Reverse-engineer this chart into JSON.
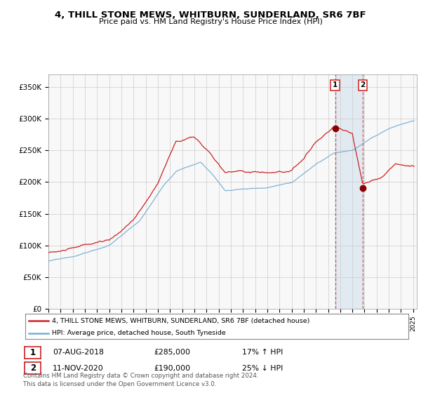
{
  "title1": "4, THILL STONE MEWS, WHITBURN, SUNDERLAND, SR6 7BF",
  "title2": "Price paid vs. HM Land Registry's House Price Index (HPI)",
  "ylabel_ticks": [
    "£0",
    "£50K",
    "£100K",
    "£150K",
    "£200K",
    "£250K",
    "£300K",
    "£350K"
  ],
  "ytick_vals": [
    0,
    50000,
    100000,
    150000,
    200000,
    250000,
    300000,
    350000
  ],
  "ylim": [
    0,
    370000
  ],
  "year_start": 1995,
  "year_end": 2025,
  "sale1_year": 2018.58,
  "sale1_price": 285000,
  "sale1_label": "07-AUG-2018",
  "sale1_hpi": "17% ↑ HPI",
  "sale2_year": 2020.86,
  "sale2_price": 190000,
  "sale2_label": "11-NOV-2020",
  "sale2_hpi": "25% ↓ HPI",
  "hpi_color": "#7aafd4",
  "price_color": "#cc2222",
  "dot_color": "#880000",
  "grid_color": "#cccccc",
  "bg_color": "#f8f8f8",
  "legend_line1": "4, THILL STONE MEWS, WHITBURN, SUNDERLAND, SR6 7BF (detached house)",
  "legend_line2": "HPI: Average price, detached house, South Tyneside",
  "footnote": "Contains HM Land Registry data © Crown copyright and database right 2024.\nThis data is licensed under the Open Government Licence v3.0."
}
